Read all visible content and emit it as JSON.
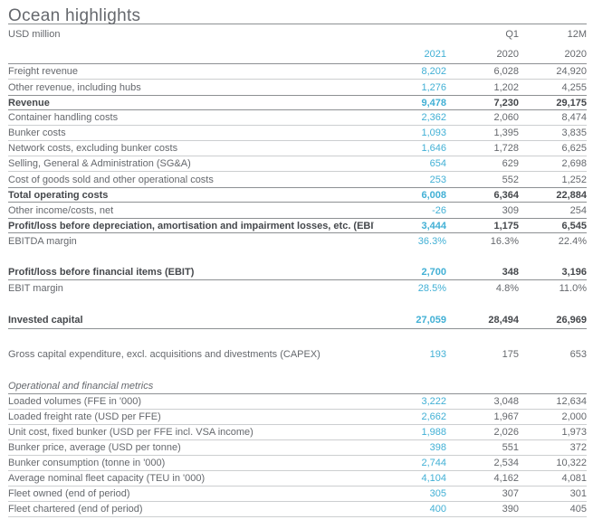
{
  "header": {
    "title": "Ocean highlights",
    "unit_label": "USD million",
    "period_labels": [
      "",
      "Q1",
      "12M"
    ],
    "year_labels": [
      "2021",
      "2020",
      "2020"
    ]
  },
  "colors": {
    "accent_2021": "#42b0d5",
    "text": "#65686d",
    "text_bold": "#45484c",
    "border_light": "#ccced0",
    "border_dark": "#8d9093"
  },
  "table": {
    "rows": [
      {
        "label": "Freight revenue",
        "values": [
          "8,202",
          "6,028",
          "24,920"
        ],
        "bb": "light"
      },
      {
        "label": "Other revenue, including hubs",
        "values": [
          "1,276",
          "1,202",
          "4,255"
        ],
        "bb": "none"
      },
      {
        "label": "Revenue",
        "values": [
          "9,478",
          "7,230",
          "29,175"
        ],
        "bold": true,
        "bt": "dark",
        "bb": "dark"
      },
      {
        "label": "Container handling costs",
        "values": [
          "2,362",
          "2,060",
          "8,474"
        ],
        "bb": "light"
      },
      {
        "label": "Bunker costs",
        "values": [
          "1,093",
          "1,395",
          "3,835"
        ],
        "bb": "light"
      },
      {
        "label": "Network costs, excluding bunker costs",
        "values": [
          "1,646",
          "1,728",
          "6,625"
        ],
        "bb": "light"
      },
      {
        "label": "Selling, General & Administration (SG&A)",
        "values": [
          "654",
          "629",
          "2,698"
        ],
        "bb": "light"
      },
      {
        "label": "Cost of goods sold and other operational costs",
        "values": [
          "253",
          "552",
          "1,252"
        ],
        "bb": "none"
      },
      {
        "label": "Total operating costs",
        "values": [
          "6,008",
          "6,364",
          "22,884"
        ],
        "bold": true,
        "bt": "dark",
        "bb": "dark"
      },
      {
        "label": "Other income/costs, net",
        "values": [
          "-26",
          "309",
          "254"
        ],
        "bb": "none"
      },
      {
        "label": "Profit/loss before depreciation, amortisation and impairment losses, etc. (EBITDA)",
        "values": [
          "3,444",
          "1,175",
          "6,545"
        ],
        "bold": true,
        "bt": "dark",
        "bb": "dark"
      },
      {
        "label": "EBITDA margin",
        "values": [
          "36.3%",
          "16.3%",
          "22.4%"
        ],
        "bb": "none"
      },
      {
        "type": "spacer",
        "h": 18
      },
      {
        "label": "Profit/loss before financial items (EBIT)",
        "values": [
          "2,700",
          "348",
          "3,196"
        ],
        "bold": true,
        "bb": "dark"
      },
      {
        "label": "EBIT margin",
        "values": [
          "28.5%",
          "4.8%",
          "11.0%"
        ],
        "bb": "none"
      },
      {
        "type": "spacer",
        "h": 18
      },
      {
        "label": "Invested capital",
        "values": [
          "27,059",
          "28,494",
          "26,969"
        ],
        "bold": true,
        "bb": "dark",
        "h": 19
      },
      {
        "type": "spacer",
        "h": 19
      },
      {
        "label": "Gross capital expenditure, excl. acquisitions and divestments (CAPEX)",
        "values": [
          "193",
          "175",
          "653"
        ],
        "bb": "none"
      },
      {
        "type": "spacer",
        "h": 19
      },
      {
        "label": "Operational and financial metrics",
        "values": [
          "",
          "",
          ""
        ],
        "italic": true,
        "bb": "dark"
      },
      {
        "label": "Loaded volumes (FFE in '000)",
        "values": [
          "3,222",
          "3,048",
          "12,634"
        ],
        "bb": "light"
      },
      {
        "label": "Loaded freight rate (USD per FFE)",
        "values": [
          "2,662",
          "1,967",
          "2,000"
        ],
        "bb": "light"
      },
      {
        "label": "Unit cost, fixed bunker (USD per FFE incl. VSA income)",
        "values": [
          "1,988",
          "2,026",
          "1,973"
        ],
        "bb": "light"
      },
      {
        "label": "Bunker price, average (USD per tonne)",
        "values": [
          "398",
          "551",
          "372"
        ],
        "bb": "light"
      },
      {
        "label": "Bunker consumption (tonne in '000)",
        "values": [
          "2,744",
          "2,534",
          "10,322"
        ],
        "bb": "light"
      },
      {
        "label": "Average nominal fleet capacity (TEU in '000)",
        "values": [
          "4,104",
          "4,162",
          "4,081"
        ],
        "bb": "light"
      },
      {
        "label": "Fleet owned (end of period)",
        "values": [
          "305",
          "307",
          "301"
        ],
        "bb": "light"
      },
      {
        "label": "Fleet chartered (end of period)",
        "values": [
          "400",
          "390",
          "405"
        ],
        "bb": "light"
      }
    ]
  }
}
